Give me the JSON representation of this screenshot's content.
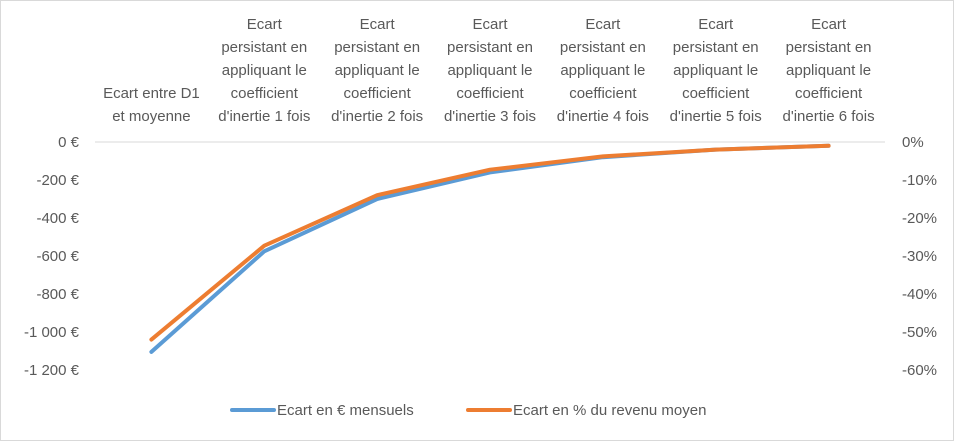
{
  "chart_data": {
    "type": "line",
    "categories": [
      [
        "Ecart entre D1",
        "et moyenne"
      ],
      [
        "Ecart",
        "persistant en",
        "appliquant le",
        "coefficient",
        "d'inertie 1 fois"
      ],
      [
        "Ecart",
        "persistant en",
        "appliquant le",
        "coefficient",
        "d'inertie 2 fois"
      ],
      [
        "Ecart",
        "persistant en",
        "appliquant le",
        "coefficient",
        "d'inertie 3 fois"
      ],
      [
        "Ecart",
        "persistant en",
        "appliquant le",
        "coefficient",
        "d'inertie 4 fois"
      ],
      [
        "Ecart",
        "persistant en",
        "appliquant le",
        "coefficient",
        "d'inertie 5 fois"
      ],
      [
        "Ecart",
        "persistant en",
        "appliquant le",
        "coefficient",
        "d'inertie 6 fois"
      ]
    ],
    "y_left": {
      "ticks": [
        "0 €",
        "-200 €",
        "-400 €",
        "-600 €",
        "-800 €",
        "-1 000 €",
        "-1 200 €"
      ],
      "ylim": [
        -1200,
        0
      ]
    },
    "y_right": {
      "ticks": [
        "0%",
        "-10%",
        "-20%",
        "-30%",
        "-40%",
        "-50%",
        "-60%"
      ],
      "ylim": [
        -60,
        0
      ]
    },
    "series": [
      {
        "name": "Ecart en € mensuels",
        "axis": "left",
        "color": "#5b9bd5",
        "values": [
          -1105,
          -575,
          -300,
          -160,
          -80,
          -40,
          -20
        ]
      },
      {
        "name": "Ecart en % du revenu moyen",
        "axis": "right",
        "color": "#ed7d31",
        "values": [
          -52,
          -27.3,
          -14,
          -7.3,
          -3.8,
          -2,
          -1
        ]
      }
    ],
    "grid": false,
    "legend": "bottom"
  }
}
